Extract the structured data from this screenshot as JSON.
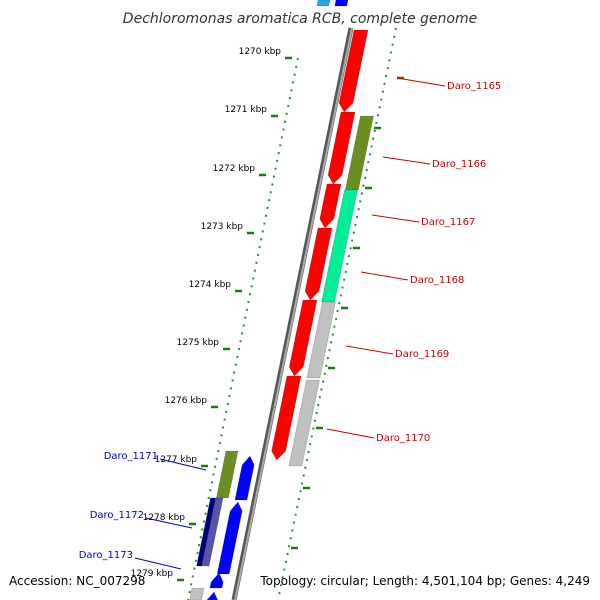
{
  "title": "Dechloromonas aromatica RCB, complete genome",
  "accession": "Accession: NC_007298",
  "summary": "Topology: circular; Length: 4,501,104 bp; Genes: 4,249",
  "colors": {
    "forward_strand": "#ff0000",
    "reverse_strand": "#0000ff",
    "olive": "#6b8e23",
    "spring_green": "#00ee99",
    "grey": "#c0c0c0",
    "slate_blue": "#5555aa",
    "navy": "#000080",
    "ticks": "#1a7a1a",
    "backbone": "#808080",
    "right_label": "#cc0000",
    "left_label": "#0000cc"
  },
  "ticks": [
    {
      "label": "1270 kbp"
    },
    {
      "label": "1271 kbp"
    },
    {
      "label": "1272 kbp"
    },
    {
      "label": "1273 kbp"
    },
    {
      "label": "1274 kbp"
    },
    {
      "label": "1275 kbp"
    },
    {
      "label": "1276 kbp"
    },
    {
      "label": "1277 kbp"
    },
    {
      "label": "1278 kbp"
    },
    {
      "label": "1279 kbp"
    }
  ],
  "right_genes": [
    {
      "name": "Daro_1165"
    },
    {
      "name": "Daro_1166"
    },
    {
      "name": "Daro_1167"
    },
    {
      "name": "Daro_1168"
    },
    {
      "name": "Daro_1169"
    },
    {
      "name": "Daro_1170"
    }
  ],
  "left_genes": [
    {
      "name": "Daro_1171"
    },
    {
      "name": "Daro_1172"
    },
    {
      "name": "Daro_1173"
    }
  ]
}
